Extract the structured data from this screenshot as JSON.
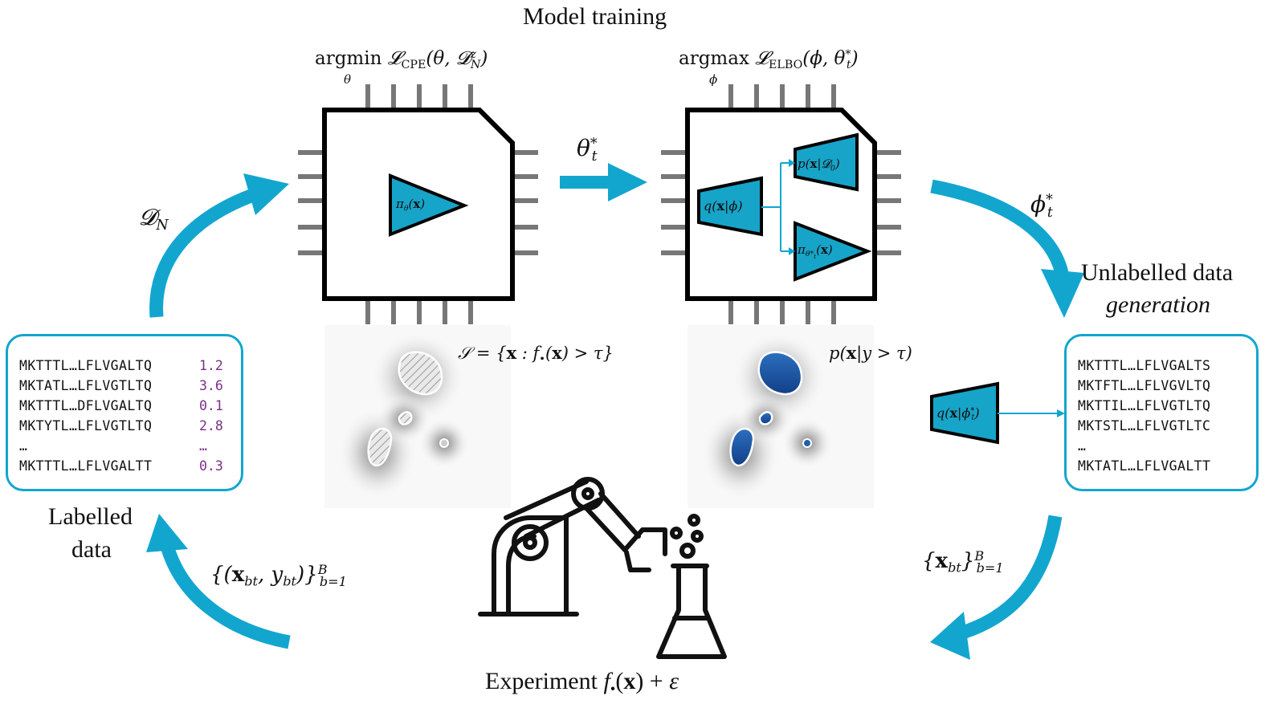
{
  "titles": {
    "model_training": "Model training",
    "unlabelled_line1": "Unlabelled data",
    "unlabelled_line2": "generation",
    "labelled_line1": "Labelled",
    "labelled_line2": "data",
    "experiment": "Experiment f•(x) + ε"
  },
  "chips": {
    "left_objective": "argmin 𝓛CPE(θ, 𝓓zN)",
    "left_objective_sub": "θ",
    "right_objective": "argmax 𝓛ELBO(ϕ, θ*t)",
    "right_objective_sub": "ϕ",
    "left_model": "πθ(x)",
    "right_encoder": "q(x|ϕ)",
    "right_decoder_prior": "p(x|𝓓0)",
    "right_decoder_policy": "πθ*t(x)"
  },
  "arrows": {
    "theta_star": "θ*t",
    "phi_star": "ϕ*t",
    "dataset": "𝓓N",
    "labelled_batch": "{(xbt, ybt)}Bb=1",
    "unlabelled_batch": "{xbt}Bb=1"
  },
  "density": {
    "left_set": "𝒮 = {x : f•(x) > τ}",
    "right_cond": "p(x|y > τ)"
  },
  "generator": {
    "label": "q(x|ϕ*t)"
  },
  "labelled_data": {
    "sequences": [
      "MKTTTL…LFLVGALTQ",
      "MKTATL…LFLVGTLTQ",
      "MKTTTL…DFLVGALTQ",
      "MKTYTL…LFLVGTLTQ",
      "…",
      "MKTTTL…LFLVGALTT"
    ],
    "values": [
      "1.2",
      "3.6",
      "0.1",
      "2.8",
      "…",
      "0.3"
    ]
  },
  "unlabelled_data": {
    "sequences": [
      "MKTTTL…LFLVGALTS",
      "MKTFTL…LFLVGVLTQ",
      "MKTTIL…LFLVGTLTQ",
      "MKTSTL…LFLVGTLTC",
      "…",
      "MKTATL…LFLVGALTT"
    ]
  },
  "colors": {
    "accent": "#12a6cf",
    "model_fill": "#17a4c9",
    "value_text": "#7a2f86",
    "region_blue": "#1f5fae"
  },
  "icons": [
    "robot-arm-icon",
    "flask-icon",
    "chip-icon"
  ]
}
